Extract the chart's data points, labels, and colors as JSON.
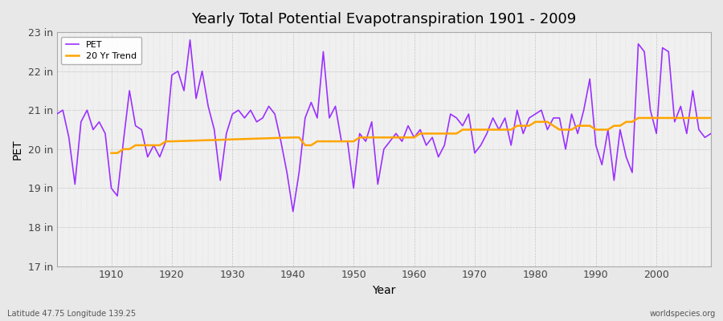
{
  "title": "Yearly Total Potential Evapotranspiration 1901 - 2009",
  "xlabel": "Year",
  "ylabel": "PET",
  "bottom_left_label": "Latitude 47.75 Longitude 139.25",
  "bottom_right_label": "worldspecies.org",
  "pet_color": "#9B30FF",
  "trend_color": "#FFA500",
  "bg_color": "#E8E8E8",
  "plot_bg_color": "#F0F0F0",
  "ylim": [
    17,
    23
  ],
  "xlim": [
    1901,
    2009
  ],
  "yticks": [
    17,
    18,
    19,
    20,
    21,
    22,
    23
  ],
  "ytick_labels": [
    "17 in",
    "18 in",
    "19 in",
    "20 in",
    "21 in",
    "22 in",
    "23 in"
  ],
  "xticks": [
    1910,
    1920,
    1930,
    1940,
    1950,
    1960,
    1970,
    1980,
    1990,
    2000
  ],
  "years": [
    1901,
    1902,
    1903,
    1904,
    1905,
    1906,
    1907,
    1908,
    1909,
    1910,
    1911,
    1912,
    1913,
    1914,
    1915,
    1916,
    1917,
    1918,
    1919,
    1920,
    1921,
    1922,
    1923,
    1924,
    1925,
    1926,
    1927,
    1928,
    1929,
    1930,
    1931,
    1932,
    1933,
    1934,
    1935,
    1936,
    1937,
    1938,
    1939,
    1940,
    1941,
    1942,
    1943,
    1944,
    1945,
    1946,
    1947,
    1948,
    1949,
    1950,
    1951,
    1952,
    1953,
    1954,
    1955,
    1956,
    1957,
    1958,
    1959,
    1960,
    1961,
    1962,
    1963,
    1964,
    1965,
    1966,
    1967,
    1968,
    1969,
    1970,
    1971,
    1972,
    1973,
    1974,
    1975,
    1976,
    1977,
    1978,
    1979,
    1980,
    1981,
    1982,
    1983,
    1984,
    1985,
    1986,
    1987,
    1988,
    1989,
    1990,
    1991,
    1992,
    1993,
    1994,
    1995,
    1996,
    1997,
    1998,
    1999,
    2000,
    2001,
    2002,
    2003,
    2004,
    2005,
    2006,
    2007,
    2008,
    2009
  ],
  "pet_values": [
    20.9,
    21.0,
    20.3,
    19.1,
    20.7,
    21.0,
    20.5,
    20.7,
    20.4,
    19.0,
    18.8,
    20.2,
    21.5,
    20.6,
    20.5,
    19.8,
    20.1,
    19.8,
    20.2,
    21.9,
    22.0,
    21.5,
    22.8,
    21.3,
    22.0,
    21.1,
    20.5,
    19.2,
    20.4,
    20.9,
    21.0,
    20.8,
    21.0,
    20.7,
    20.8,
    21.1,
    20.9,
    20.2,
    19.4,
    18.4,
    19.4,
    20.8,
    21.2,
    20.8,
    22.5,
    20.8,
    21.1,
    20.2,
    20.2,
    19.0,
    20.4,
    20.2,
    20.7,
    19.1,
    20.0,
    20.2,
    20.4,
    20.2,
    20.6,
    20.3,
    20.5,
    20.1,
    20.3,
    19.8,
    20.1,
    20.9,
    20.8,
    20.6,
    20.9,
    19.9,
    20.1,
    20.4,
    20.8,
    20.5,
    20.8,
    20.1,
    21.0,
    20.4,
    20.8,
    20.9,
    21.0,
    20.5,
    20.8,
    20.8,
    20.0,
    20.9,
    20.4,
    21.0,
    21.8,
    20.1,
    19.6,
    20.5,
    19.2,
    20.5,
    19.8,
    19.4,
    22.7,
    22.5,
    21.0,
    20.4,
    22.6,
    22.5,
    20.7,
    21.1,
    20.4,
    21.5,
    20.5,
    20.3,
    20.4
  ],
  "trend_years": [
    1910,
    1911,
    1912,
    1913,
    1914,
    1915,
    1916,
    1917,
    1918,
    1919,
    1920,
    1940,
    1941,
    1942,
    1943,
    1944,
    1945,
    1946,
    1947,
    1948,
    1949,
    1950,
    1951,
    1952,
    1953,
    1954,
    1955,
    1956,
    1957,
    1958,
    1959,
    1960,
    1961,
    1962,
    1963,
    1964,
    1965,
    1966,
    1967,
    1968,
    1969,
    1970,
    1971,
    1972,
    1973,
    1974,
    1975,
    1976,
    1977,
    1978,
    1979,
    1980,
    1981,
    1982,
    1983,
    1984,
    1985,
    1986,
    1987,
    1988,
    1989,
    1990,
    1991,
    1992,
    1993,
    1994,
    1995,
    1996,
    1997,
    1998,
    1999,
    2000,
    2001,
    2002,
    2003,
    2004,
    2005,
    2006,
    2007,
    2008,
    2009
  ],
  "trend_values": [
    19.9,
    19.9,
    20.0,
    20.0,
    20.1,
    20.1,
    20.1,
    20.1,
    20.1,
    20.2,
    20.2,
    20.3,
    20.3,
    20.1,
    20.1,
    20.2,
    20.2,
    20.2,
    20.2,
    20.2,
    20.2,
    20.2,
    20.3,
    20.3,
    20.3,
    20.3,
    20.3,
    20.3,
    20.3,
    20.3,
    20.3,
    20.3,
    20.4,
    20.4,
    20.4,
    20.4,
    20.4,
    20.4,
    20.4,
    20.5,
    20.5,
    20.5,
    20.5,
    20.5,
    20.5,
    20.5,
    20.5,
    20.5,
    20.6,
    20.6,
    20.6,
    20.7,
    20.7,
    20.7,
    20.6,
    20.5,
    20.5,
    20.5,
    20.6,
    20.6,
    20.6,
    20.5,
    20.5,
    20.5,
    20.6,
    20.6,
    20.7,
    20.7,
    20.8,
    20.8,
    20.8,
    20.8,
    20.8,
    20.8,
    20.8,
    20.8,
    20.8,
    20.8,
    20.8,
    20.8,
    20.8
  ]
}
